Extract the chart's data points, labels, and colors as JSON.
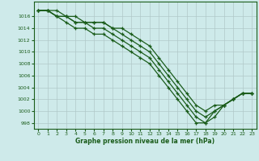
{
  "xlabel": "Graphe pression niveau de la mer (hPa)",
  "ylim": [
    997,
    1018.5
  ],
  "xlim": [
    -0.5,
    23.5
  ],
  "yticks": [
    998,
    1000,
    1002,
    1004,
    1006,
    1008,
    1010,
    1012,
    1014,
    1016
  ],
  "xticks": [
    0,
    1,
    2,
    3,
    4,
    5,
    6,
    7,
    8,
    9,
    10,
    11,
    12,
    13,
    14,
    15,
    16,
    17,
    18,
    19,
    20,
    21,
    22,
    23
  ],
  "bg_color": "#ceeaea",
  "grid_color": "#b0c8c8",
  "line_color": "#1a5c1a",
  "line1_x": [
    0,
    1,
    2,
    3,
    4,
    5,
    6,
    7,
    8,
    9,
    10,
    11,
    12,
    13,
    14,
    15,
    16,
    17,
    18,
    19,
    20,
    21,
    22,
    23
  ],
  "line1_y": [
    1017,
    1017,
    1017,
    1016,
    1016,
    1015,
    1015,
    1015,
    1014,
    1014,
    1013,
    1012,
    1011,
    1009,
    1007,
    1005,
    1003,
    1001,
    1000,
    1001,
    1001,
    1002,
    1003,
    1003
  ],
  "line2_x": [
    0,
    1,
    2,
    3,
    4,
    5,
    6,
    7,
    8,
    9,
    10,
    11,
    12,
    13,
    14,
    15,
    16,
    17,
    18,
    19,
    20,
    21,
    22,
    23
  ],
  "line2_y": [
    1017,
    1017,
    1016,
    1016,
    1015,
    1015,
    1015,
    1015,
    1014,
    1013,
    1012,
    1011,
    1010,
    1008,
    1006,
    1004,
    1002,
    1000,
    999,
    1000,
    1001,
    1002,
    1003,
    1003
  ],
  "line3_x": [
    0,
    1,
    2,
    3,
    4,
    5,
    6,
    7,
    8,
    9,
    10,
    11,
    12,
    13,
    14,
    15,
    16,
    17,
    18,
    19,
    20,
    21,
    22,
    23
  ],
  "line3_y": [
    1017,
    1017,
    1016,
    1016,
    1015,
    1015,
    1014,
    1014,
    1013,
    1012,
    1011,
    1010,
    1009,
    1007,
    1005,
    1003,
    1001,
    999,
    998,
    999,
    1001,
    1002,
    1003,
    1003
  ],
  "line4_x": [
    0,
    1,
    2,
    3,
    4,
    5,
    6,
    7,
    8,
    9,
    10,
    11,
    12,
    13,
    14,
    15,
    16,
    17,
    18,
    19,
    20,
    21,
    22,
    23
  ],
  "line4_y": [
    1017,
    1017,
    1016,
    1015,
    1014,
    1014,
    1013,
    1013,
    1012,
    1011,
    1010,
    1009,
    1008,
    1006,
    1004,
    1002,
    1000,
    998,
    998,
    1000,
    1001,
    1002,
    1003,
    1003
  ]
}
